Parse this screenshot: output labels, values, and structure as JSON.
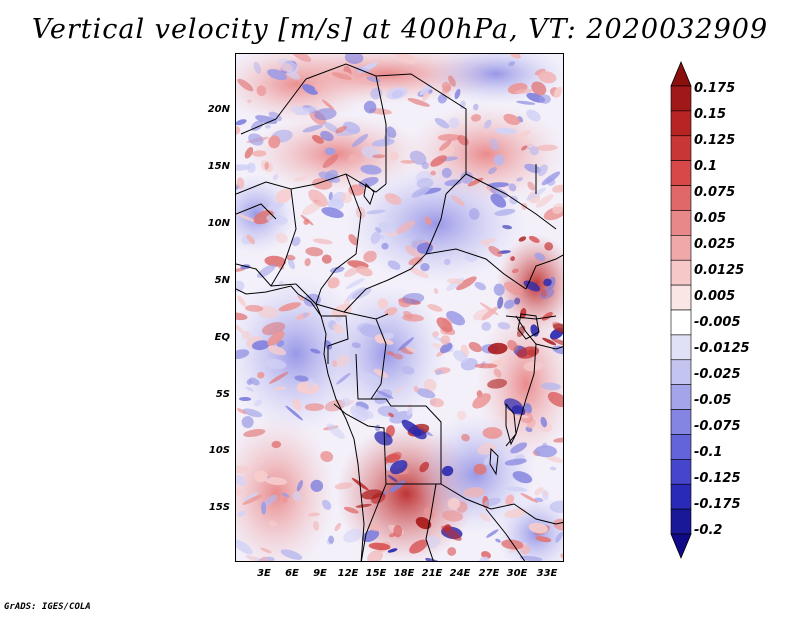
{
  "title": "Vertical velocity [m/s] at 400hPa, VT: 2020032909",
  "footer": "GrADS: IGES/COLA",
  "map": {
    "region": "Central Africa",
    "variable": "Vertical velocity",
    "units": "m/s",
    "level": "400hPa",
    "valid_time": "2020032909",
    "lat_labels": [
      "20N",
      "15N",
      "10N",
      "5N",
      "EQ",
      "5S",
      "10S",
      "15S"
    ],
    "lon_labels": [
      "3E",
      "6E",
      "9E",
      "12E",
      "15E",
      "18E",
      "21E",
      "24E",
      "27E",
      "30E",
      "33E"
    ]
  },
  "colorbar": {
    "labels": [
      "0.175",
      "0.15",
      "0.125",
      "0.1",
      "0.075",
      "0.05",
      "0.025",
      "0.0125",
      "0.005",
      "-0.005",
      "-0.0125",
      "-0.025",
      "-0.05",
      "-0.075",
      "-0.1",
      "-0.125",
      "-0.175",
      "-0.2"
    ],
    "colors": [
      "#a01818",
      "#b82424",
      "#c83636",
      "#d84848",
      "#e06868",
      "#e88888",
      "#f0a8a8",
      "#f6c8c8",
      "#fbe6e6",
      "#ffffff",
      "#e0e0f6",
      "#c4c4f0",
      "#a4a4ea",
      "#8484e2",
      "#6464da",
      "#4646cc",
      "#2a2ab8",
      "#181898"
    ],
    "top_arrow_color": "#8a1010",
    "bottom_arrow_color": "#100a88"
  }
}
